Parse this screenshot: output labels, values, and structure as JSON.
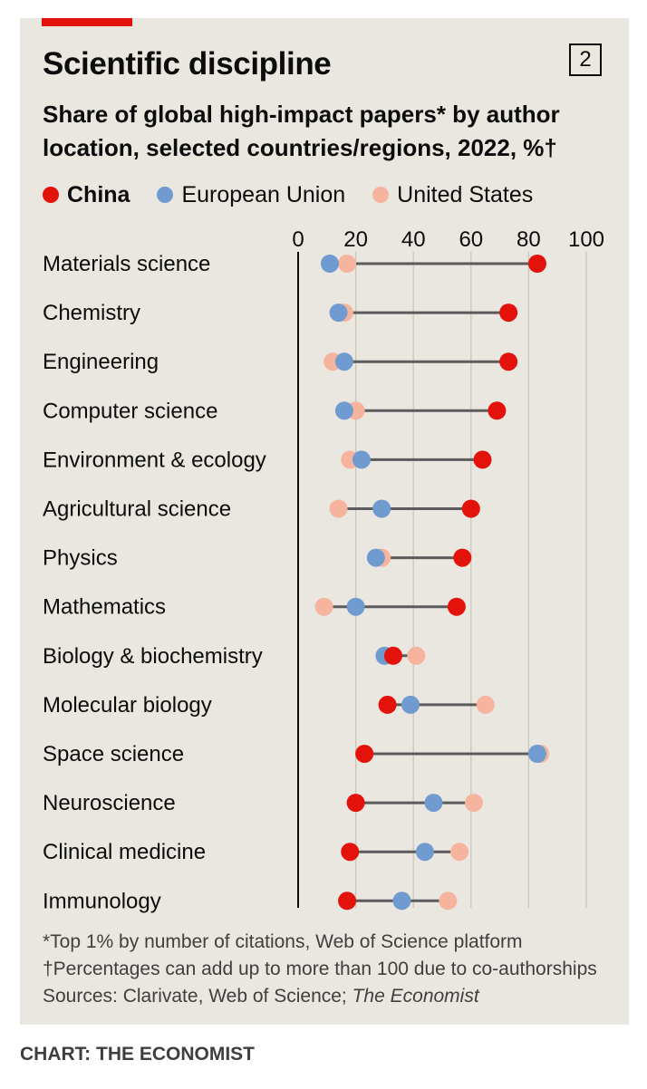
{
  "header": {
    "title": "Scientific discipline",
    "figure_number": "2",
    "subtitle": "Share of global high-impact papers* by author location, selected countries/regions, 2022, %†"
  },
  "legend": {
    "items": [
      {
        "label": "China",
        "color": "#e3120b"
      },
      {
        "label": "European Union",
        "color": "#6f9bd1"
      },
      {
        "label": "United States",
        "color": "#f6b49e"
      }
    ]
  },
  "chart_data": {
    "type": "dot",
    "title": "Scientific discipline",
    "subtitle": "Share of global high-impact papers* by author location, selected countries/regions, 2022, %†",
    "xlim": [
      0,
      100
    ],
    "xticks": [
      0,
      20,
      40,
      60,
      80,
      100
    ],
    "grid": true,
    "legend_position": "top",
    "categories": [
      "Materials science",
      "Chemistry",
      "Engineering",
      "Computer science",
      "Environment & ecology",
      "Agricultural science",
      "Physics",
      "Mathematics",
      "Biology & biochemistry",
      "Molecular biology",
      "Space science",
      "Neuroscience",
      "Clinical medicine",
      "Immunology"
    ],
    "series": [
      {
        "name": "China",
        "color": "#e3120b",
        "values": [
          83,
          73,
          73,
          69,
          64,
          60,
          57,
          55,
          33,
          31,
          23,
          20,
          18,
          17
        ]
      },
      {
        "name": "European Union",
        "color": "#6f9bd1",
        "values": [
          11,
          14,
          16,
          16,
          22,
          29,
          27,
          20,
          30,
          39,
          83,
          47,
          44,
          36
        ]
      },
      {
        "name": "United States",
        "color": "#f6b49e",
        "values": [
          17,
          16,
          12,
          20,
          18,
          14,
          29,
          9,
          41,
          65,
          84,
          61,
          56,
          52
        ]
      }
    ]
  },
  "footnotes": {
    "note1": "*Top 1% by number of citations, Web of Science platform",
    "note2": "†Percentages can add up to more than 100 due to co-authorships",
    "sources_prefix": "Sources: Clarivate, Web of Science; ",
    "sources_italic": "The Economist"
  },
  "credit": "CHART: THE ECONOMIST"
}
